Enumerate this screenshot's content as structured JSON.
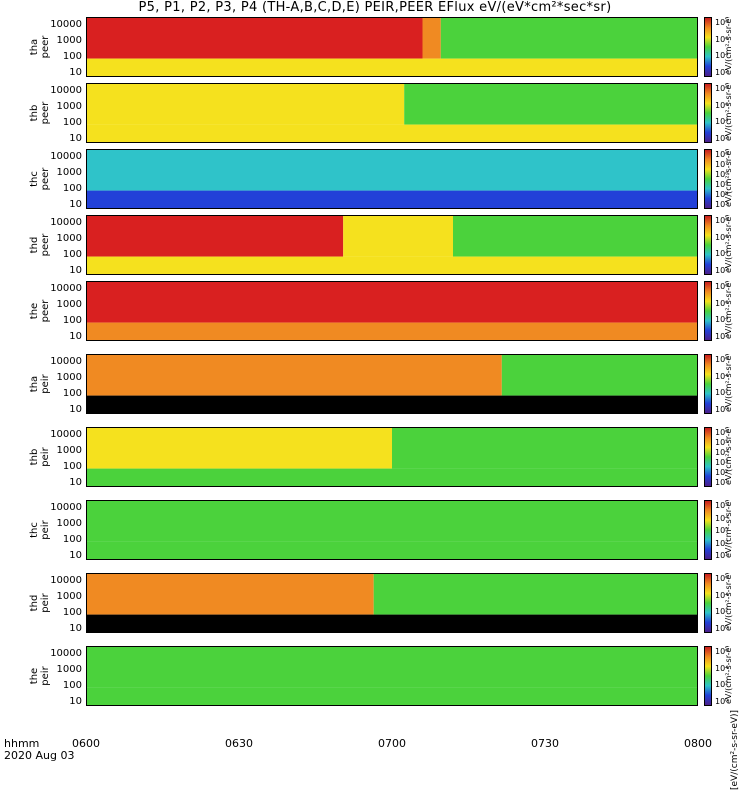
{
  "title": "P5, P1, P2, P3, P4 (TH-A,B,C,D,E) PEIR,PEER EFlux eV/(eV*cm²*sec*sr)",
  "time_axis": {
    "label": "hhmm",
    "date": "2020 Aug 03",
    "ticks": [
      "0600",
      "0630",
      "0700",
      "0730",
      "0800"
    ]
  },
  "colorbar_unit": "[eV/(cm²-s-sr-eV)]",
  "colors": {
    "red": "#d92020",
    "orange": "#f08a22",
    "yellow": "#f5e11e",
    "green": "#4bd23c",
    "cyan": "#2fc3c9",
    "blue": "#2241d8",
    "purple": "#4b1f8a",
    "black": "#000000"
  },
  "chart_data": [
    {
      "type": "heatmap",
      "probe": "tha",
      "species": "peer",
      "ylabel": [
        "tha",
        "peer"
      ],
      "yscale": "log",
      "ylim": [
        10,
        30000
      ],
      "yticks": [
        "10000",
        "1000",
        "100",
        "10"
      ],
      "colorbar_ticks": [
        "10⁸",
        "10⁶",
        "10⁴",
        "10²"
      ],
      "colorbar_label": "eV/(cm²-s-sr-eV)"
    },
    {
      "type": "heatmap",
      "probe": "thb",
      "species": "peer",
      "ylabel": [
        "thb",
        "peer"
      ],
      "yscale": "log",
      "ylim": [
        10,
        30000
      ],
      "yticks": [
        "10000",
        "1000",
        "100",
        "10"
      ],
      "colorbar_ticks": [
        "10⁸",
        "10⁶",
        "10⁴",
        "10²"
      ],
      "colorbar_label": "eV/(cm²-s-sr-eV)"
    },
    {
      "type": "heatmap",
      "probe": "thc",
      "species": "peer",
      "ylabel": [
        "thc",
        "peer"
      ],
      "yscale": "log",
      "ylim": [
        10,
        30000
      ],
      "yticks": [
        "10000",
        "1000",
        "100",
        "10"
      ],
      "colorbar_ticks": [
        "10⁸",
        "10⁷",
        "10⁶",
        "10⁵",
        "10⁴",
        "10³"
      ],
      "colorbar_label": "eV/(cm²-s-sr-eV)"
    },
    {
      "type": "heatmap",
      "probe": "thd",
      "species": "peer",
      "ylabel": [
        "thd",
        "peer"
      ],
      "yscale": "log",
      "ylim": [
        10,
        30000
      ],
      "yticks": [
        "10000",
        "1000",
        "100",
        "10"
      ],
      "colorbar_ticks": [
        "10⁸",
        "10⁶",
        "10⁴",
        "10²"
      ],
      "colorbar_label": "eV/(cm²-s-sr-eV)"
    },
    {
      "type": "heatmap",
      "probe": "the",
      "species": "peer",
      "ylabel": [
        "the",
        "peer"
      ],
      "yscale": "log",
      "ylim": [
        10,
        30000
      ],
      "yticks": [
        "10000",
        "1000",
        "100",
        "10"
      ],
      "colorbar_ticks": [
        "10⁸",
        "10⁶",
        "10⁴",
        "10²"
      ],
      "colorbar_label": "eV/(cm²-s-sr-eV)"
    },
    {
      "type": "heatmap",
      "probe": "tha",
      "species": "peir",
      "ylabel": [
        "tha",
        "peir"
      ],
      "yscale": "log",
      "ylim": [
        10,
        30000
      ],
      "yticks": [
        "10000",
        "1000",
        "100",
        "10"
      ],
      "colorbar_ticks": [
        "10⁶",
        "10⁴",
        "10²",
        "10⁰"
      ],
      "colorbar_label": "eV/(cm²-s-sr-eV)"
    },
    {
      "type": "heatmap",
      "probe": "thb",
      "species": "peir",
      "ylabel": [
        "thb",
        "peir"
      ],
      "yscale": "log",
      "ylim": [
        10,
        30000
      ],
      "yticks": [
        "10000",
        "1000",
        "100",
        "10"
      ],
      "colorbar_ticks": [
        "10⁶",
        "10⁵",
        "10⁴",
        "10³",
        "10²",
        "10¹"
      ],
      "colorbar_label": "eV/(cm²-s-sr-eV)"
    },
    {
      "type": "heatmap",
      "probe": "thc",
      "species": "peir",
      "ylabel": [
        "thc",
        "peir"
      ],
      "yscale": "log",
      "ylim": [
        10,
        30000
      ],
      "yticks": [
        "10000",
        "1000",
        "100",
        "10"
      ],
      "colorbar_ticks": [
        "10⁵",
        "10⁴",
        "10³",
        "10²",
        "10¹"
      ],
      "colorbar_label": "eV/(cm²-s-sr-eV)"
    },
    {
      "type": "heatmap",
      "probe": "thd",
      "species": "peir",
      "ylabel": [
        "thd",
        "peir"
      ],
      "yscale": "log",
      "ylim": [
        10,
        30000
      ],
      "yticks": [
        "10000",
        "1000",
        "100",
        "10"
      ],
      "colorbar_ticks": [
        "10⁶",
        "10⁴",
        "10²",
        "10⁰"
      ],
      "colorbar_label": "eV/(cm²-s-sr-eV)"
    },
    {
      "type": "heatmap",
      "probe": "the",
      "species": "peir",
      "ylabel": [
        "the",
        "peir"
      ],
      "yscale": "log",
      "ylim": [
        10,
        30000
      ],
      "yticks": [
        "10000",
        "1000",
        "100",
        "10"
      ],
      "colorbar_ticks": [
        "10⁶",
        "10⁴",
        "10²",
        "10⁰"
      ],
      "colorbar_label": "eV/(cm²-s-sr-eV)"
    }
  ]
}
